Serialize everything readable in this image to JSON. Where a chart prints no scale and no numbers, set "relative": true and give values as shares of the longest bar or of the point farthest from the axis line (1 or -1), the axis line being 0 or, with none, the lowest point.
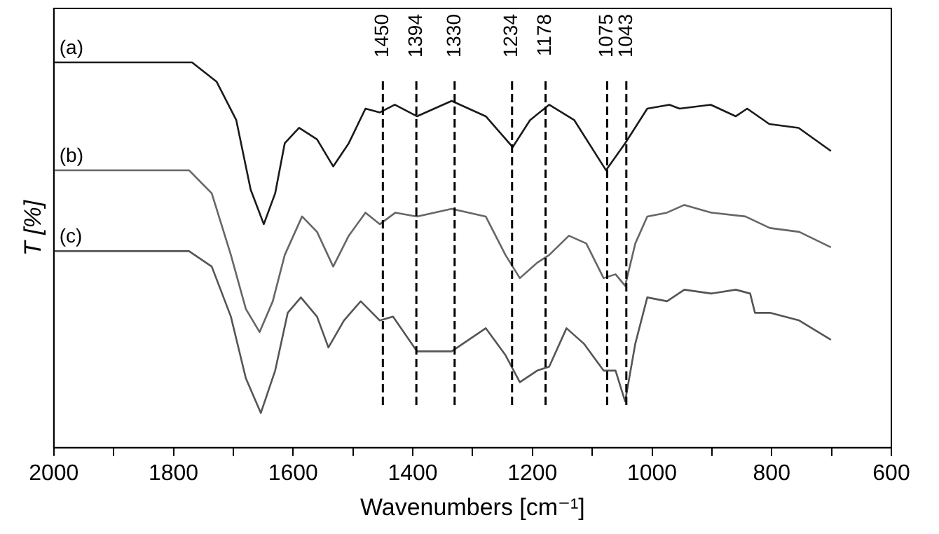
{
  "chart_data": {
    "type": "line",
    "relative": true,
    "xlabel": "Wavenumbers [cm⁻¹]",
    "ylabel": "T [%]",
    "xlim": [
      2000,
      600
    ],
    "xticks": [
      2000,
      {
        "value": 1900,
        "label": null
      },
      1800,
      {
        "value": 1700,
        "label": null
      },
      1600,
      {
        "value": 1500,
        "label": null
      },
      1400,
      {
        "value": 1300,
        "label": null
      },
      1200,
      {
        "value": 1100,
        "label": null
      },
      1000,
      {
        "value": 900,
        "label": null
      },
      800,
      {
        "value": 700,
        "label": null
      },
      600
    ],
    "grid": false,
    "legend": false,
    "marker": "none",
    "line_style": "solid",
    "series": [
      {
        "name": "(a)",
        "color": "#1a1a1a",
        "x": [
          2000,
          1769,
          1728,
          1695,
          1671,
          1649,
          1630,
          1614,
          1590,
          1560,
          1533,
          1507,
          1479,
          1455,
          1430,
          1393,
          1335,
          1278,
          1233,
          1204,
          1172,
          1130,
          1077,
          1045,
          1008,
          971,
          954,
          902,
          860,
          841,
          804,
          755,
          701
        ],
        "values": [
          1.0,
          1.0,
          0.95,
          0.85,
          0.67,
          0.58,
          0.66,
          0.79,
          0.83,
          0.8,
          0.73,
          0.79,
          0.88,
          0.87,
          0.89,
          0.86,
          0.9,
          0.86,
          0.78,
          0.85,
          0.89,
          0.85,
          0.72,
          0.79,
          0.88,
          0.89,
          0.88,
          0.89,
          0.86,
          0.88,
          0.84,
          0.83,
          0.77
        ]
      },
      {
        "name": "(b)",
        "color": "#666666",
        "x": [
          2000,
          1774,
          1736,
          1704,
          1679,
          1656,
          1634,
          1614,
          1585,
          1560,
          1533,
          1507,
          1479,
          1455,
          1429,
          1393,
          1335,
          1278,
          1245,
          1221,
          1192,
          1172,
          1139,
          1110,
          1081,
          1061,
          1045,
          1028,
          1008,
          975,
          946,
          901,
          844,
          803,
          754,
          701
        ],
        "values": [
          0.72,
          0.72,
          0.66,
          0.5,
          0.36,
          0.3,
          0.38,
          0.5,
          0.6,
          0.56,
          0.47,
          0.55,
          0.61,
          0.58,
          0.61,
          0.6,
          0.62,
          0.6,
          0.5,
          0.44,
          0.48,
          0.5,
          0.55,
          0.53,
          0.44,
          0.45,
          0.42,
          0.53,
          0.6,
          0.61,
          0.63,
          0.61,
          0.6,
          0.57,
          0.56,
          0.52
        ]
      },
      {
        "name": "(c)",
        "color": "#555555",
        "x": [
          2000,
          1774,
          1736,
          1704,
          1679,
          1654,
          1630,
          1609,
          1587,
          1560,
          1541,
          1515,
          1487,
          1455,
          1433,
          1393,
          1335,
          1278,
          1245,
          1221,
          1192,
          1172,
          1143,
          1114,
          1081,
          1061,
          1045,
          1028,
          1008,
          975,
          946,
          901,
          860,
          836,
          828,
          803,
          754,
          701
        ],
        "values": [
          0.51,
          0.51,
          0.47,
          0.34,
          0.18,
          0.09,
          0.2,
          0.35,
          0.39,
          0.34,
          0.26,
          0.33,
          0.38,
          0.33,
          0.34,
          0.25,
          0.25,
          0.31,
          0.24,
          0.17,
          0.2,
          0.21,
          0.31,
          0.27,
          0.2,
          0.2,
          0.12,
          0.27,
          0.39,
          0.38,
          0.41,
          0.4,
          0.41,
          0.4,
          0.35,
          0.35,
          0.33,
          0.28
        ]
      }
    ],
    "ref_lines": [
      {
        "axis": "x",
        "value": 1450,
        "label": "1450",
        "color": "#000000",
        "line_style": "dashed"
      },
      {
        "axis": "x",
        "value": 1394,
        "label": "1394",
        "color": "#000000",
        "line_style": "dashed"
      },
      {
        "axis": "x",
        "value": 1330,
        "label": "1330",
        "color": "#000000",
        "line_style": "dashed"
      },
      {
        "axis": "x",
        "value": 1234,
        "label": "1234",
        "color": "#000000",
        "line_style": "dashed"
      },
      {
        "axis": "x",
        "value": 1178,
        "label": "1178",
        "color": "#000000",
        "line_style": "dashed"
      },
      {
        "axis": "x",
        "value": 1075,
        "label": "1075",
        "color": "#000000",
        "line_style": "dashed"
      },
      {
        "axis": "x",
        "value": 1043,
        "label": "1043",
        "color": "#000000",
        "line_style": "dashed"
      }
    ]
  }
}
